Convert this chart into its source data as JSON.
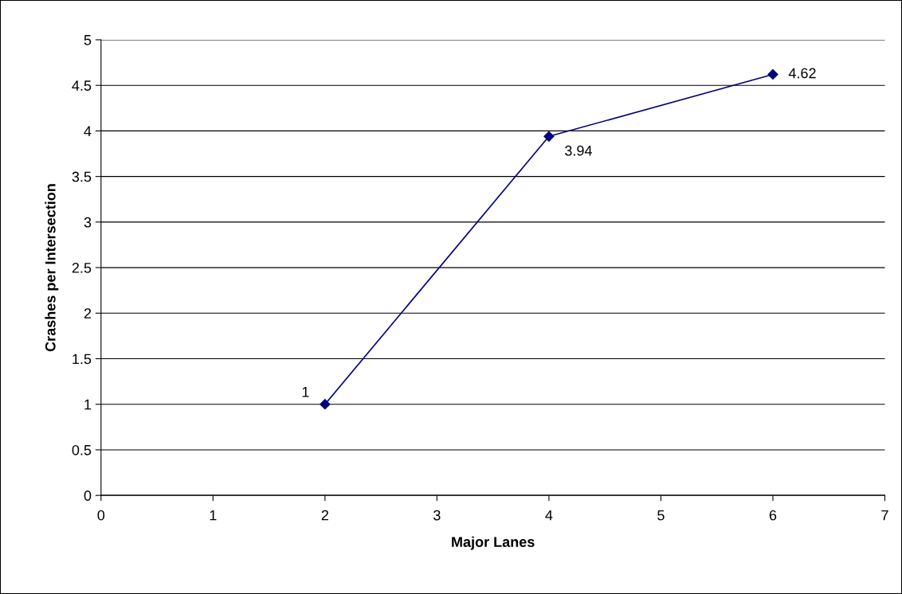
{
  "chart_data": {
    "type": "line",
    "xlabel": "Major Lanes",
    "ylabel": "Crashes per Intersection",
    "x": [
      2,
      4,
      6
    ],
    "series": [
      {
        "color": "#000080",
        "values": [
          1,
          3.94,
          4.62
        ]
      }
    ],
    "xlim": [
      0,
      7
    ],
    "xticks": [
      0,
      1,
      2,
      3,
      4,
      5,
      6,
      7
    ],
    "ylim": [
      0,
      5
    ],
    "yticks": [
      0,
      0.5,
      1,
      1.5,
      2,
      2.5,
      3,
      3.5,
      4,
      4.5,
      5
    ],
    "grid": "y",
    "marker": "diamond",
    "line_style": "solid",
    "data_labels": true
  }
}
